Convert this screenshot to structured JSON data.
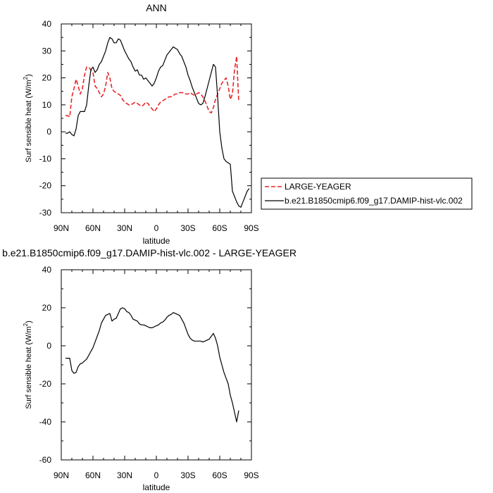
{
  "chart_data": [
    {
      "type": "line",
      "title": "ANN",
      "xlabel": "latitude",
      "ylabel": "Surf sensible heat (W/m",
      "ylabel_sup": "2",
      "ylabel_end": ")",
      "xlim": [
        90,
        -90
      ],
      "ylim": [
        -30,
        40
      ],
      "xticks": [
        90,
        60,
        30,
        0,
        -30,
        -60,
        -90
      ],
      "xtick_labels": [
        "90N",
        "60N",
        "30N",
        "0",
        "30S",
        "60S",
        "90S"
      ],
      "yticks": [
        -30,
        -20,
        -10,
        0,
        10,
        20,
        30,
        40
      ],
      "ytick_labels": [
        "-30",
        "-20",
        "-10",
        "0",
        "10",
        "20",
        "30",
        "40"
      ],
      "legend_position": "right",
      "series": [
        {
          "name": "LARGE-YEAGER",
          "color": "#e8262a",
          "dash": true,
          "x": [
            86,
            84,
            82,
            80,
            78,
            76,
            74,
            72,
            70,
            68,
            66,
            64,
            62,
            60,
            58,
            56,
            54,
            52,
            50,
            48,
            46,
            44,
            42,
            40,
            38,
            36,
            34,
            32,
            30,
            28,
            26,
            24,
            22,
            20,
            18,
            16,
            14,
            12,
            10,
            8,
            6,
            4,
            2,
            0,
            -2,
            -4,
            -6,
            -8,
            -10,
            -12,
            -14,
            -16,
            -18,
            -20,
            -22,
            -24,
            -26,
            -28,
            -30,
            -32,
            -34,
            -36,
            -38,
            -40,
            -42,
            -44,
            -46,
            -48,
            -50,
            -52,
            -54,
            -56,
            -58,
            -60,
            -62,
            -64,
            -66,
            -68,
            -70,
            -72,
            -74,
            -76,
            -78
          ],
          "y": [
            6,
            6,
            5.5,
            13,
            16,
            19.5,
            17,
            14,
            16,
            21,
            24,
            24,
            23,
            22,
            17,
            16,
            14.5,
            13,
            14,
            17,
            22,
            20,
            16,
            15,
            14.5,
            14,
            13.5,
            12,
            11,
            10.5,
            10,
            10,
            10.5,
            11,
            10.5,
            10,
            9.5,
            10,
            11,
            10.5,
            9.5,
            8.5,
            7.5,
            8.5,
            10,
            11,
            11.5,
            12,
            12.5,
            13,
            13,
            13.5,
            14,
            14,
            14.5,
            14.5,
            14.5,
            14,
            14,
            14.5,
            14,
            13.5,
            14,
            14.5,
            14,
            13,
            11.5,
            9.5,
            7.5,
            7,
            9,
            12,
            14,
            16,
            18,
            19,
            20,
            17,
            12,
            14,
            23,
            28,
            11
          ]
        },
        {
          "name": "b.e21.B1850cmip6.f09_g17.DAMIP-hist-vlc.002",
          "color": "#000000",
          "dash": false,
          "x": [
            86,
            84,
            82,
            80,
            78,
            76,
            74,
            72,
            70,
            68,
            66,
            64,
            62,
            60,
            58,
            56,
            54,
            52,
            50,
            48,
            46,
            44,
            42,
            40,
            38,
            36,
            34,
            32,
            30,
            28,
            26,
            24,
            22,
            20,
            18,
            16,
            14,
            12,
            10,
            8,
            6,
            4,
            2,
            0,
            -2,
            -4,
            -6,
            -8,
            -10,
            -12,
            -14,
            -16,
            -18,
            -20,
            -22,
            -24,
            -26,
            -28,
            -30,
            -32,
            -34,
            -36,
            -38,
            -40,
            -42,
            -44,
            -46,
            -48,
            -50,
            -52,
            -54,
            -56,
            -58,
            -60,
            -62,
            -64,
            -66,
            -68,
            -70,
            -72,
            -74,
            -76,
            -78,
            -80,
            -82,
            -84,
            -86,
            -88
          ],
          "y": [
            -0.5,
            -0.5,
            0,
            -1,
            -1.5,
            1,
            6,
            7.5,
            7.5,
            7.5,
            10,
            17,
            23,
            24,
            22,
            23,
            25,
            26,
            28,
            30,
            33,
            35,
            34.5,
            33,
            33,
            34.5,
            34,
            32,
            30,
            28.5,
            27,
            26,
            24,
            22.5,
            23,
            21,
            21,
            19.5,
            20,
            19,
            18,
            17,
            18,
            20,
            22.5,
            24,
            24.5,
            26.5,
            28.5,
            29.5,
            30.5,
            31.5,
            31,
            30.5,
            29,
            28,
            26,
            24,
            21,
            19,
            16.5,
            14.5,
            12.5,
            10.5,
            10,
            10.5,
            13,
            16,
            19,
            22,
            25,
            24,
            13,
            0,
            -6,
            -10,
            -11,
            -11.5,
            -12,
            -22,
            -24,
            -26,
            -27.5,
            -28,
            -26,
            -24,
            -22,
            -21
          ]
        }
      ]
    },
    {
      "type": "line",
      "title": "b.e21.B1850cmip6.f09_g17.DAMIP-hist-vlc.002 - LARGE-YEAGER",
      "xlabel": "latitude",
      "ylabel": "Surf sensible heat (W/m",
      "ylabel_sup": "2",
      "ylabel_end": ")",
      "xlim": [
        90,
        -90
      ],
      "ylim": [
        -60,
        40
      ],
      "xticks": [
        90,
        60,
        30,
        0,
        -30,
        -60,
        -90
      ],
      "xtick_labels": [
        "90N",
        "60N",
        "30N",
        "0",
        "30S",
        "60S",
        "90S"
      ],
      "yticks": [
        -60,
        -40,
        -20,
        0,
        20,
        40
      ],
      "ytick_labels": [
        "-60",
        "-40",
        "-20",
        "0",
        "20",
        "40"
      ],
      "series": [
        {
          "color": "#000000",
          "dash": false,
          "x": [
            86,
            84,
            82,
            80,
            78,
            76,
            74,
            72,
            70,
            68,
            66,
            64,
            62,
            60,
            58,
            56,
            54,
            52,
            50,
            48,
            46,
            44,
            42,
            40,
            38,
            36,
            34,
            32,
            30,
            28,
            26,
            24,
            22,
            20,
            18,
            16,
            14,
            12,
            10,
            8,
            6,
            4,
            2,
            0,
            -2,
            -4,
            -6,
            -8,
            -10,
            -12,
            -14,
            -16,
            -18,
            -20,
            -22,
            -24,
            -26,
            -28,
            -30,
            -32,
            -34,
            -36,
            -38,
            -40,
            -42,
            -44,
            -46,
            -48,
            -50,
            -52,
            -54,
            -56,
            -58,
            -60,
            -62,
            -64,
            -66,
            -68,
            -70,
            -72,
            -74,
            -76,
            -78
          ],
          "y": [
            -6.5,
            -6.5,
            -6.5,
            -13,
            -14.5,
            -14,
            -11,
            -9.5,
            -9,
            -8,
            -7,
            -5,
            -3,
            -1,
            2,
            5,
            8,
            12,
            14,
            16,
            16.5,
            17,
            13,
            14,
            14.5,
            17,
            19.5,
            20,
            19.5,
            18,
            17.5,
            16,
            14,
            13.5,
            13,
            11.5,
            11,
            11,
            10.5,
            10,
            9.5,
            9.5,
            10,
            10.5,
            11,
            12,
            12.5,
            13.5,
            15,
            16,
            16.5,
            17.5,
            17,
            16.5,
            16,
            14,
            12,
            9,
            6,
            4,
            3,
            2.5,
            2.5,
            2.5,
            2.5,
            2,
            2.5,
            3,
            3.5,
            5,
            6.5,
            4,
            0,
            -6,
            -10,
            -14,
            -17,
            -20,
            -26,
            -30,
            -35,
            -40,
            -34
          ]
        }
      ]
    }
  ]
}
